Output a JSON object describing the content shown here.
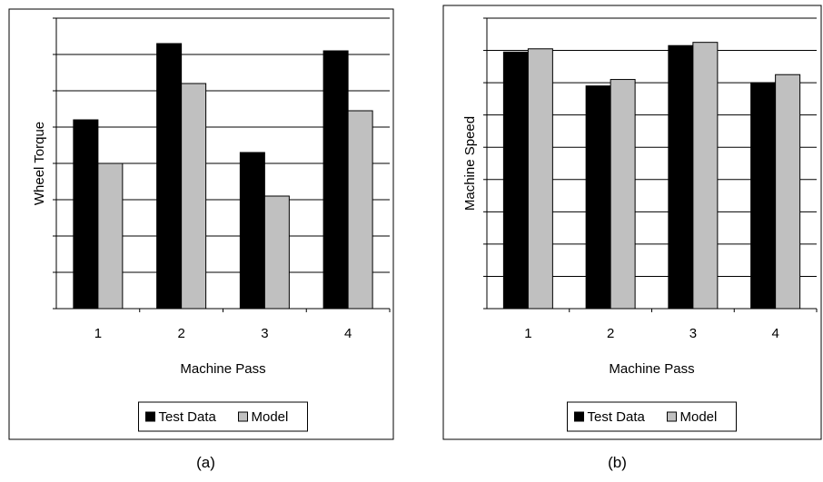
{
  "colors": {
    "test": "#000000",
    "model": "#c0c0c0",
    "grid": "#000000",
    "frame": "#000000"
  },
  "charts": [
    {
      "caption": "(a)",
      "chart_data": {
        "type": "bar",
        "categories": [
          "1",
          "2",
          "3",
          "4"
        ],
        "xlabel": "Machine Pass",
        "ylabel": "Wheel Torque",
        "ylim": [
          0,
          8
        ],
        "gridlines": 8,
        "grid": true,
        "legend_position": "bottom",
        "series": [
          {
            "name": "Test Data",
            "values": [
              5.2,
              7.3,
              4.3,
              7.1
            ]
          },
          {
            "name": "Model",
            "values": [
              4.0,
              6.2,
              3.1,
              5.45
            ]
          }
        ]
      }
    },
    {
      "caption": "(b)",
      "chart_data": {
        "type": "bar",
        "categories": [
          "1",
          "2",
          "3",
          "4"
        ],
        "xlabel": "Machine Pass",
        "ylabel": "Machine Speed",
        "ylim": [
          0,
          9
        ],
        "gridlines": 9,
        "grid": true,
        "legend_position": "bottom",
        "series": [
          {
            "name": "Test Data",
            "values": [
              7.95,
              6.9,
              8.15,
              7.0
            ]
          },
          {
            "name": "Model",
            "values": [
              8.05,
              7.1,
              8.25,
              7.25
            ]
          }
        ]
      }
    }
  ]
}
